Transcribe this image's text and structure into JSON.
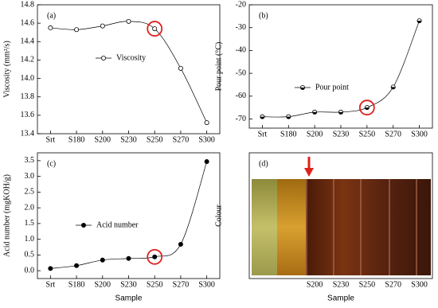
{
  "chart_data": [
    {
      "type": "line",
      "panel_label": "(a)",
      "ylabel": "Viscosity (mm²/s)",
      "categories": [
        "Srt",
        "S180",
        "S200",
        "S230",
        "S250",
        "S270",
        "S300"
      ],
      "series": [
        {
          "name": "Viscosity",
          "color": "#000000",
          "marker": "open",
          "values": [
            14.55,
            14.53,
            14.57,
            14.62,
            14.54,
            14.11,
            13.52
          ]
        }
      ],
      "ylim": [
        13.4,
        14.8
      ],
      "yticks": [
        13.4,
        13.6,
        13.8,
        {
          "value": 14,
          "label": "14.0"
        },
        14.2,
        14.4,
        14.6,
        14.8
      ]
    },
    {
      "type": "line",
      "panel_label": "(b)",
      "ylabel": "Pour point (°C)",
      "categories": [
        "Srt",
        "S180",
        "S200",
        "S230",
        "S250",
        "S270",
        "S300"
      ],
      "series": [
        {
          "name": "Pour point",
          "color": "#000000",
          "marker": "half",
          "values": [
            -69,
            -69,
            -67,
            -67,
            -65,
            -56,
            -27
          ]
        }
      ],
      "ylim": [
        -74,
        -20
      ],
      "yticks": [
        -70,
        -60,
        -50,
        -40,
        -30,
        -20
      ]
    },
    {
      "type": "line",
      "panel_label": "(c)",
      "ylabel": "Acid number (mgKOH/g)",
      "xlabel": "Sample",
      "categories": [
        "Srt",
        "S180",
        "S200",
        "S230",
        "S250",
        "S270",
        "S300"
      ],
      "series": [
        {
          "name": "Acid number",
          "color": "#000000",
          "marker": "filled",
          "values": [
            0.07,
            0.16,
            0.34,
            0.39,
            0.44,
            0.84,
            3.47
          ]
        }
      ],
      "ylim": [
        -0.25,
        3.75
      ],
      "yticks": [
        {
          "value": 0,
          "label": "0.0"
        },
        0.5,
        {
          "value": 1,
          "label": "1.0"
        },
        1.5,
        {
          "value": 2,
          "label": "2.0"
        },
        2.5,
        {
          "value": 3,
          "label": "3.0"
        },
        3.5
      ]
    },
    {
      "type": "image",
      "panel_label": "(d)",
      "ylabel": "Colour",
      "xlabel": "Sample",
      "categories": [
        null,
        null,
        "S200",
        "S230",
        "S250",
        "S270",
        "S300"
      ]
    }
  ]
}
